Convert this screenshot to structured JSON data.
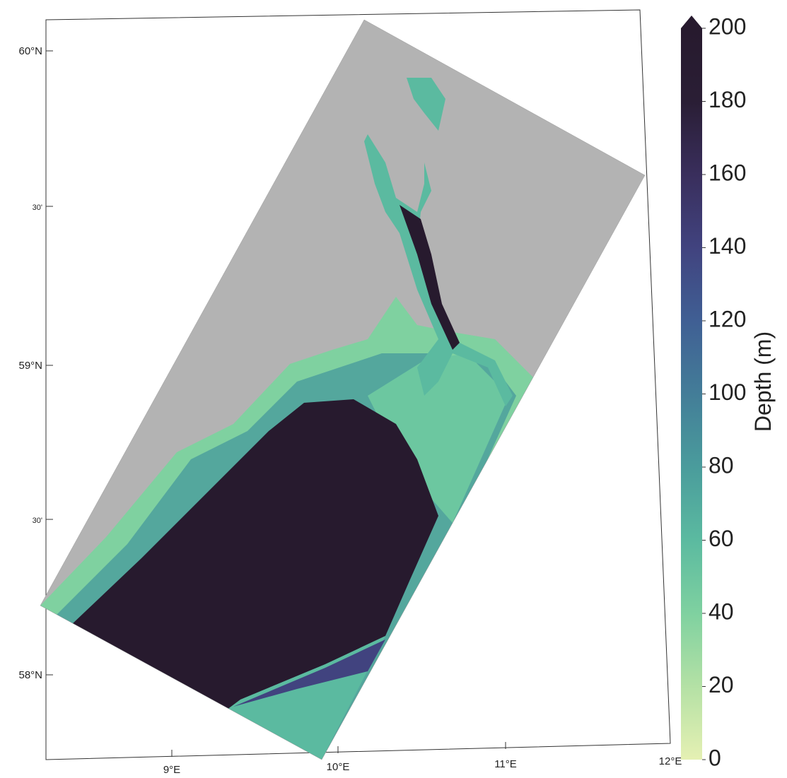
{
  "map": {
    "lat_labels": [
      "60°N",
      "30'",
      "59°N",
      "30'",
      "58°N"
    ],
    "lon_labels": [
      "9°E",
      "10°E",
      "11°E",
      "12°E"
    ],
    "colorbar": {
      "label": "Depth (m)",
      "lim": [
        0,
        200
      ],
      "ticks": [
        0,
        20,
        40,
        60,
        80,
        100,
        120,
        140,
        160,
        180,
        200
      ],
      "colors": [
        "#e5f0b3",
        "#b4e1a5",
        "#7fd1a0",
        "#5bbaa0",
        "#4a9c9c",
        "#437d98",
        "#405f94",
        "#41437f",
        "#392e5c",
        "#2a1e35",
        "#271a2e"
      ]
    }
  }
}
